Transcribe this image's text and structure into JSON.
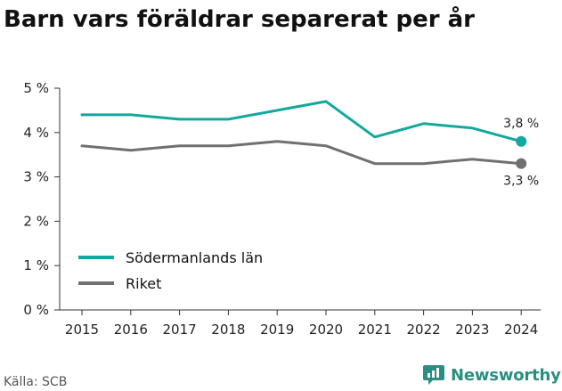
{
  "chart_data": {
    "type": "line",
    "title": "Barn vars föräldrar separerat per år",
    "xlabel": "",
    "ylabel": "",
    "categories": [
      "2015",
      "2016",
      "2017",
      "2018",
      "2019",
      "2020",
      "2021",
      "2022",
      "2023",
      "2024"
    ],
    "y_ticks": [
      0,
      1,
      2,
      3,
      4,
      5
    ],
    "y_tick_labels": [
      "0 %",
      "1 %",
      "2 %",
      "3 %",
      "4 %",
      "5 %"
    ],
    "ylim": [
      0,
      5
    ],
    "grid": false,
    "legend_position": "bottom-left",
    "series": [
      {
        "name": "Södermanlands län",
        "color": "#13a89e",
        "values": [
          4.4,
          4.4,
          4.3,
          4.3,
          4.5,
          4.7,
          3.9,
          4.2,
          4.1,
          3.8
        ],
        "end_label": "3,8 %"
      },
      {
        "name": "Riket",
        "color": "#707070",
        "values": [
          3.7,
          3.6,
          3.7,
          3.7,
          3.8,
          3.7,
          3.3,
          3.3,
          3.4,
          3.3
        ],
        "end_label": "3,3 %"
      }
    ]
  },
  "footer": {
    "source": "Källa: SCB",
    "brand": "Newsworthy",
    "brand_color": "#2a8f82"
  }
}
